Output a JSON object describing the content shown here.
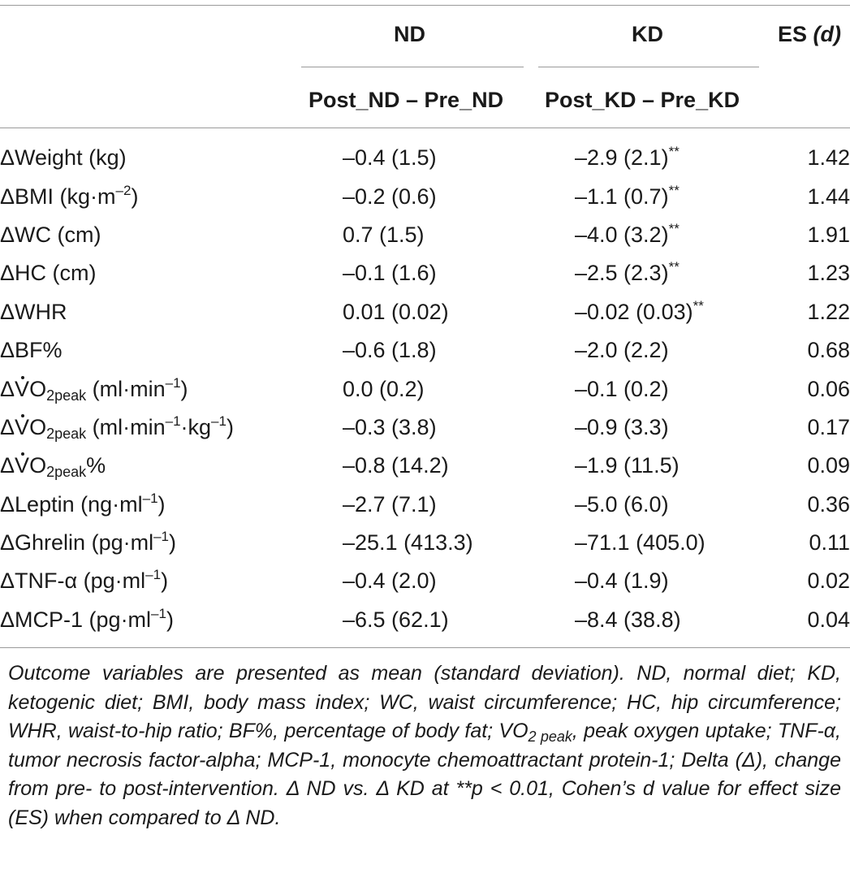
{
  "header": {
    "group_nd": "ND",
    "group_kd": "KD",
    "es_label": "ES",
    "es_symbol": "(d)",
    "sub_nd": "Post_ND – Pre_ND",
    "sub_kd": "Post_KD – Pre_KD"
  },
  "rows": [
    {
      "label": "ΔWeight (kg)",
      "nd": "–0.4 (1.5)",
      "kd": "–2.9 (2.1)",
      "kd_sig": "**",
      "es": "1.42"
    },
    {
      "label": "ΔBMI (kg·m",
      "label_sup": "–2",
      "label_after": ")",
      "nd": "–0.2 (0.6)",
      "kd": "–1.1 (0.7)",
      "kd_sig": "**",
      "es": "1.44"
    },
    {
      "label": "ΔWC (cm)",
      "nd": "0.7 (1.5)",
      "kd": "–4.0 (3.2)",
      "kd_sig": "**",
      "es": "1.91"
    },
    {
      "label": "ΔHC (cm)",
      "nd": "–0.1 (1.6)",
      "kd": "–2.5 (2.3)",
      "kd_sig": "**",
      "es": "1.23"
    },
    {
      "label": "ΔWHR",
      "nd": "0.01 (0.02)",
      "kd": "–0.02 (0.03)",
      "kd_sig": "**",
      "es": "1.22"
    },
    {
      "label": "ΔBF%",
      "nd": "–0.6 (1.8)",
      "kd": "–2.0 (2.2)",
      "es": "0.68"
    },
    {
      "label": "ΔVO",
      "label_sub": "2peak",
      "label_after": " (ml·min",
      "label_sup": "–1",
      "label_after2": ")",
      "nd": "0.0 (0.2)",
      "kd": "–0.1 (0.2)",
      "es": "0.06"
    },
    {
      "label": "ΔVO",
      "label_sub": "2peak",
      "label_after": " (ml·min",
      "label_sup": "–1",
      "label_after2": "·kg",
      "label_sup2": "–1",
      "label_after3": ")",
      "nd": "–0.3 (3.8)",
      "kd": "–0.9 (3.3)",
      "es": "0.17"
    },
    {
      "label": "ΔVO",
      "label_sub": "2peak",
      "label_after": "%",
      "nd": "–0.8 (14.2)",
      "kd": "–1.9 (11.5)",
      "es": "0.09"
    },
    {
      "label": "ΔLeptin (ng·ml",
      "label_sup": "–1",
      "label_after": ")",
      "nd": "–2.7 (7.1)",
      "kd": "–5.0 (6.0)",
      "es": "0.36"
    },
    {
      "label": "ΔGhrelin (pg·ml",
      "label_sup": "–1",
      "label_after": ")",
      "nd": "–25.1 (413.3)",
      "kd": "–71.1 (405.0)",
      "es": "0.11"
    },
    {
      "label": "ΔTNF-α (pg·ml",
      "label_sup": "–1",
      "label_after": ")",
      "nd": "–0.4 (2.0)",
      "kd": "–0.4 (1.9)",
      "es": "0.02"
    },
    {
      "label": "ΔMCP-1 (pg·ml",
      "label_sup": "–1",
      "label_after": ")",
      "nd": "–6.5 (62.1)",
      "kd": "–8.4 (38.8)",
      "es": "0.04"
    }
  ],
  "footnote": {
    "part1": "Outcome variables are presented as mean (standard deviation). ND, normal diet; KD, ketogenic diet; BMI, body mass index; WC, waist circumference; HC, hip circumference; WHR, waist-to-hip ratio; BF%, percentage of body fat; VO",
    "part1_sub": "2 peak",
    "part2": ", peak oxygen uptake; TNF-α, tumor necrosis factor-alpha; MCP-1, monocyte chemoattractant protein-1; Delta (Δ), change from pre- to post-intervention. Δ ND vs. Δ KD at **p < 0.01, Cohen’s d value for effect size (ES) when compared to Δ ND."
  }
}
